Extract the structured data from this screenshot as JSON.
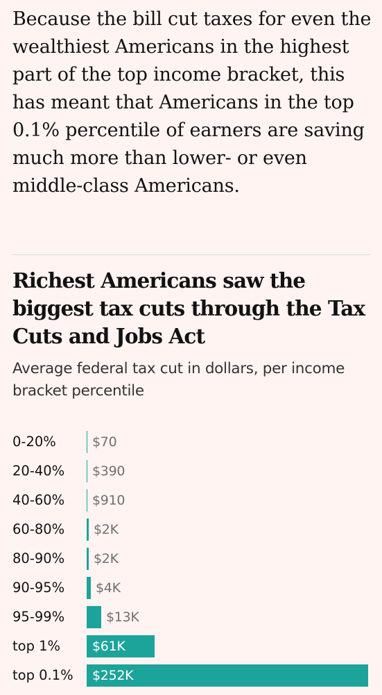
{
  "article": {
    "paragraph": "Because the bill cut taxes for even the wealthiest Americans in the highest part of the top income bracket, this has meant that Americans in the top 0.1% percentile of earners are saving much more than lower- or even middle-class Americans."
  },
  "chart_data": {
    "type": "bar",
    "orientation": "horizontal",
    "title": "Richest Americans saw the biggest tax cuts through the Tax Cuts and Jobs Act",
    "subtitle": "Average federal tax cut in dollars, per income bracket percentile",
    "xlabel": "",
    "ylabel": "",
    "categories": [
      "0-20%",
      "20-40%",
      "40-60%",
      "60-80%",
      "80-90%",
      "90-95%",
      "95-99%",
      "top 1%",
      "top 0.1%"
    ],
    "values": [
      70,
      390,
      910,
      2000,
      2000,
      4000,
      13000,
      61000,
      252000
    ],
    "value_labels": [
      "$70",
      "$390",
      "$910",
      "$2K",
      "$2K",
      "$4K",
      "$13K",
      "$61K",
      "$252K"
    ],
    "xlim": [
      0,
      252000
    ],
    "grid": false,
    "legend": "none",
    "colors": {
      "bar": "#1da49a",
      "label_outside": "#707070",
      "label_inside": "#ffffff",
      "background": "#fff4f2"
    }
  }
}
